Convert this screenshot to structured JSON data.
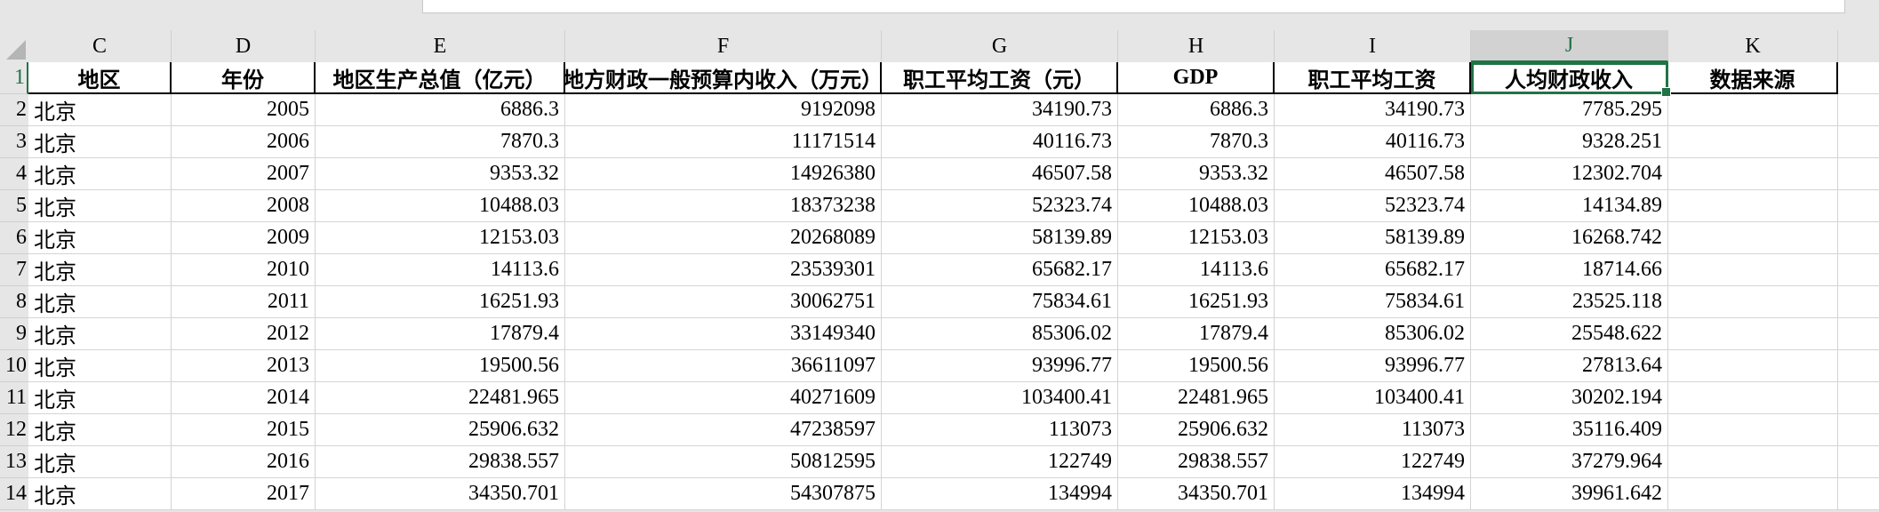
{
  "columns": [
    "C",
    "D",
    "E",
    "F",
    "G",
    "H",
    "I",
    "J",
    "K"
  ],
  "selected_column": "J",
  "selected_cell": "J1",
  "accent_color": "#217346",
  "headers": [
    "地区",
    "年份",
    "地区生产总值（亿元）",
    "地方财政一般预算内收入（万元）",
    "职工平均工资（元）",
    "GDP",
    "职工平均工资",
    "人均财政收入",
    "数据来源"
  ],
  "row_numbers": [
    "1",
    "2",
    "3",
    "4",
    "5",
    "6",
    "7",
    "8",
    "9",
    "10",
    "11",
    "12",
    "13",
    "14"
  ],
  "rows": [
    [
      "北京",
      "2005",
      "6886.3",
      "9192098",
      "34190.73",
      "6886.3",
      "34190.73",
      "7785.295",
      ""
    ],
    [
      "北京",
      "2006",
      "7870.3",
      "11171514",
      "40116.73",
      "7870.3",
      "40116.73",
      "9328.251",
      ""
    ],
    [
      "北京",
      "2007",
      "9353.32",
      "14926380",
      "46507.58",
      "9353.32",
      "46507.58",
      "12302.704",
      ""
    ],
    [
      "北京",
      "2008",
      "10488.03",
      "18373238",
      "52323.74",
      "10488.03",
      "52323.74",
      "14134.89",
      ""
    ],
    [
      "北京",
      "2009",
      "12153.03",
      "20268089",
      "58139.89",
      "12153.03",
      "58139.89",
      "16268.742",
      ""
    ],
    [
      "北京",
      "2010",
      "14113.6",
      "23539301",
      "65682.17",
      "14113.6",
      "65682.17",
      "18714.66",
      ""
    ],
    [
      "北京",
      "2011",
      "16251.93",
      "30062751",
      "75834.61",
      "16251.93",
      "75834.61",
      "23525.118",
      ""
    ],
    [
      "北京",
      "2012",
      "17879.4",
      "33149340",
      "85306.02",
      "17879.4",
      "85306.02",
      "25548.622",
      ""
    ],
    [
      "北京",
      "2013",
      "19500.56",
      "36611097",
      "93996.77",
      "19500.56",
      "93996.77",
      "27813.64",
      ""
    ],
    [
      "北京",
      "2014",
      "22481.965",
      "40271609",
      "103400.41",
      "22481.965",
      "103400.41",
      "30202.194",
      ""
    ],
    [
      "北京",
      "2015",
      "25906.632",
      "47238597",
      "113073",
      "25906.632",
      "113073",
      "35116.409",
      ""
    ],
    [
      "北京",
      "2016",
      "29838.557",
      "50812595",
      "122749",
      "29838.557",
      "122749",
      "37279.964",
      ""
    ],
    [
      "北京",
      "2017",
      "34350.701",
      "54307875",
      "134994",
      "34350.701",
      "134994",
      "39961.642",
      ""
    ]
  ]
}
